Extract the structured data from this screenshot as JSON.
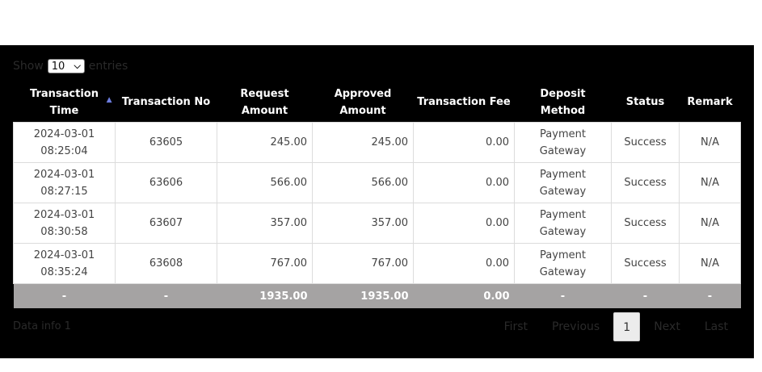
{
  "length_menu": {
    "show_label": "Show",
    "selected": "10",
    "entries_label": "entries"
  },
  "columns": [
    "Transaction Time",
    "Transaction No",
    "Request Amount",
    "Approved Amount",
    "Transaction Fee",
    "Deposit Method",
    "Status",
    "Remark"
  ],
  "rows": [
    {
      "time": "2024-03-01 08:25:04",
      "no": "63605",
      "request": "245.00",
      "approved": "245.00",
      "fee": "0.00",
      "method": "Payment Gateway",
      "status": "Success",
      "remark": "N/A"
    },
    {
      "time": "2024-03-01 08:27:15",
      "no": "63606",
      "request": "566.00",
      "approved": "566.00",
      "fee": "0.00",
      "method": "Payment Gateway",
      "status": "Success",
      "remark": "N/A"
    },
    {
      "time": "2024-03-01 08:30:58",
      "no": "63607",
      "request": "357.00",
      "approved": "357.00",
      "fee": "0.00",
      "method": "Payment Gateway",
      "status": "Success",
      "remark": "N/A"
    },
    {
      "time": "2024-03-01 08:35:24",
      "no": "63608",
      "request": "767.00",
      "approved": "767.00",
      "fee": "0.00",
      "method": "Payment Gateway",
      "status": "Success",
      "remark": "N/A"
    }
  ],
  "totals": {
    "time": "-",
    "no": "-",
    "request": "1935.00",
    "approved": "1935.00",
    "fee": "0.00",
    "method": "-",
    "status": "-",
    "remark": "-"
  },
  "info": "Data info 1",
  "pagination": {
    "first": "First",
    "previous": "Previous",
    "current": "1",
    "next": "Next",
    "last": "Last"
  },
  "colors": {
    "panel_bg": "#000000",
    "footer_bg": "#a5a3a3",
    "sort_arrow": "#6d7ee0"
  },
  "icons": {
    "sort": "sort-ascending-icon",
    "dropdown": "chevron-down-icon"
  }
}
